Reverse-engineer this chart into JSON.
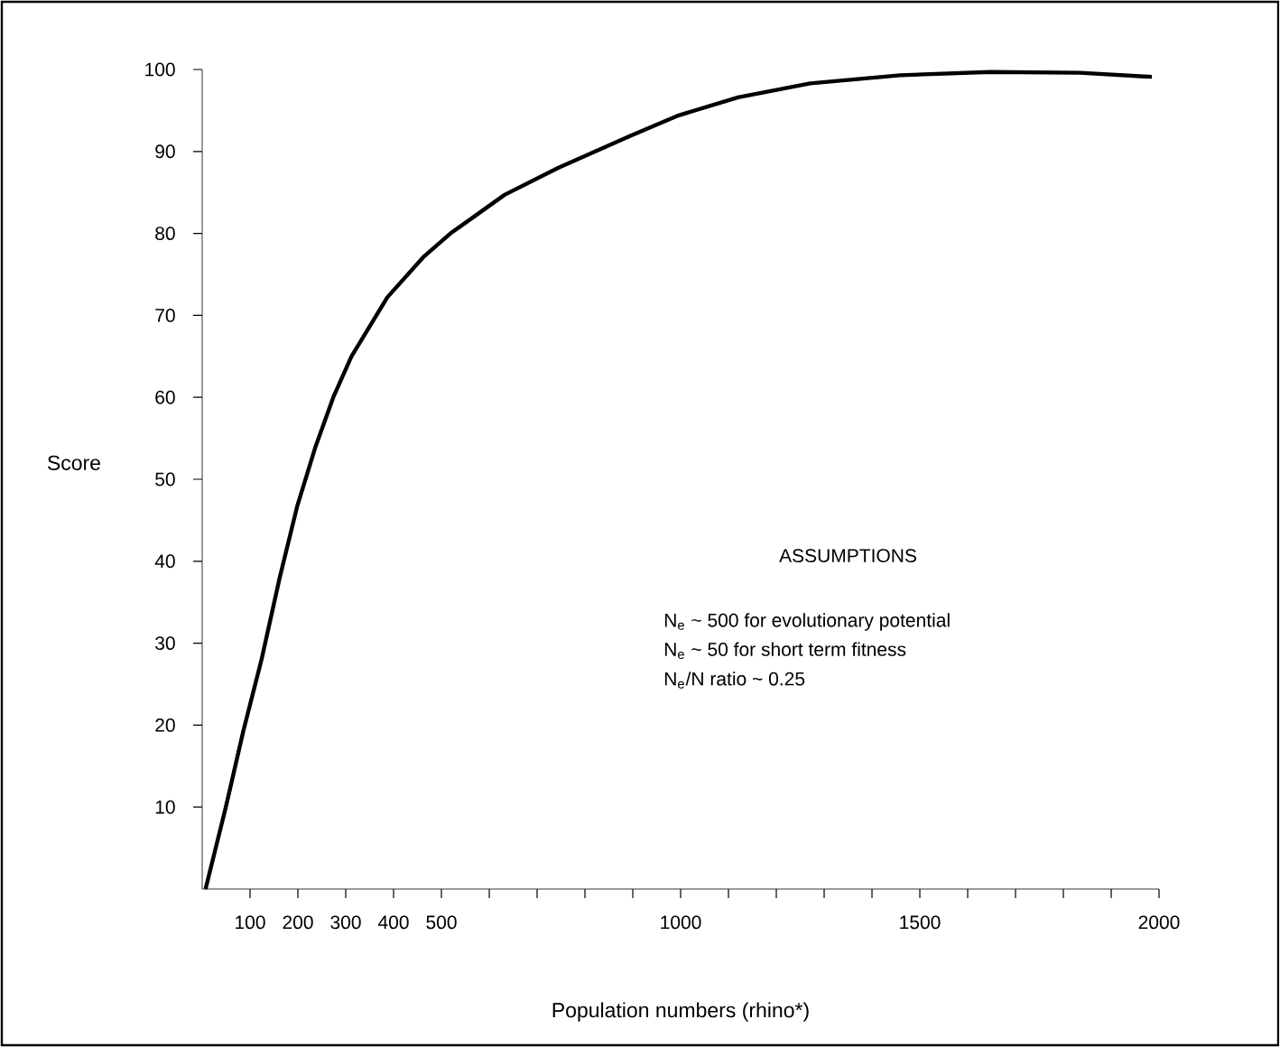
{
  "chart_data": {
    "type": "line",
    "xlabel": "Population numbers (rhino*)",
    "ylabel": "Score",
    "x": [
      7,
      49,
      86,
      124,
      162,
      199,
      237,
      274,
      312,
      387,
      462,
      519,
      632,
      744,
      895,
      996,
      1120,
      1271,
      1459,
      1647,
      1835,
      1985
    ],
    "values": [
      0,
      9.9,
      19.3,
      28,
      38,
      46.8,
      54,
      60,
      65,
      72.2,
      77.1,
      80,
      84.7,
      88,
      91.9,
      94.4,
      96.6,
      98.3,
      99.3,
      99.7,
      99.6,
      99.1
    ],
    "color": "#000000",
    "xlim": [
      0,
      2000
    ],
    "ylim": [
      0,
      100
    ],
    "xticks": [
      100,
      200,
      300,
      400,
      500,
      {
        "value": 600,
        "label": null
      },
      {
        "value": 700,
        "label": null
      },
      {
        "value": 800,
        "label": null
      },
      {
        "value": 900,
        "label": null
      },
      1000,
      {
        "value": 1100,
        "label": null
      },
      {
        "value": 1200,
        "label": null
      },
      {
        "value": 1300,
        "label": null
      },
      {
        "value": 1400,
        "label": null
      },
      1500,
      {
        "value": 1600,
        "label": null
      },
      {
        "value": 1700,
        "label": null
      },
      {
        "value": 1800,
        "label": null
      },
      {
        "value": 1900,
        "label": null
      },
      2000
    ],
    "yticks": [
      10,
      20,
      30,
      40,
      50,
      60,
      70,
      80,
      90,
      100
    ],
    "annotations": [
      "ASSUMPTIONS",
      "N$_{e}$ ~  500 for evolutionary potential",
      "N$_{e}$ ~  50 for short term fitness",
      "N$_{e}$/N ratio ~  0.25"
    ]
  }
}
